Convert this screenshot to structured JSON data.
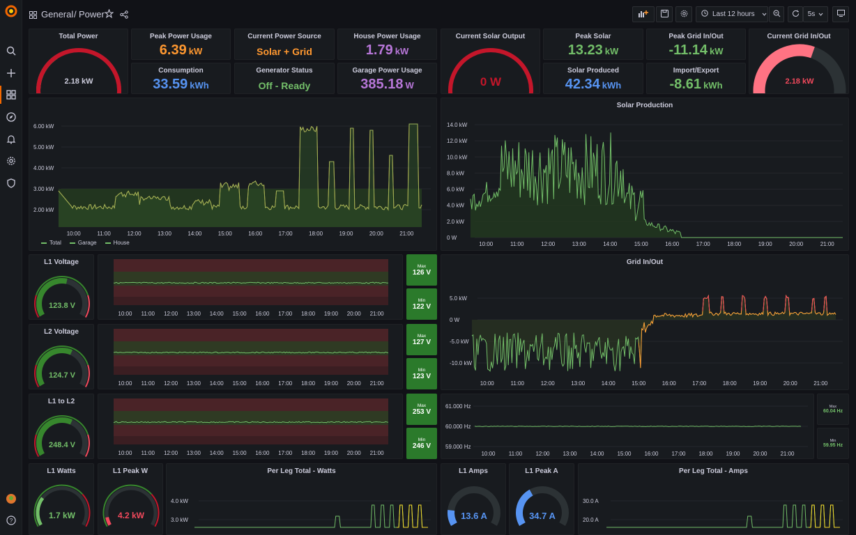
{
  "breadcrumb": {
    "folder": "General",
    "separator": "/",
    "dashboard": "Power"
  },
  "toolbar": {
    "time_range": "Last 12 hours",
    "refresh_interval": "5s"
  },
  "colors": {
    "green": "#73bf69",
    "orange": "#ff9830",
    "yellow": "#fade2a",
    "purple": "#b877d9",
    "blue": "#5794f2",
    "red": "#f2495c",
    "dark_red": "#c4162a"
  },
  "time_ticks": [
    "10:00",
    "11:00",
    "12:00",
    "13:00",
    "14:00",
    "15:00",
    "16:00",
    "17:00",
    "18:00",
    "19:00",
    "20:00",
    "21:00"
  ],
  "stats": {
    "total_power": {
      "title": "Total Power",
      "value": "2.18 kW",
      "fraction": 0.36
    },
    "peak_power_usage": {
      "title": "Peak Power Usage",
      "value": "6.39",
      "unit": "kW"
    },
    "current_power_source": {
      "title": "Current Power Source",
      "value": "Solar + Grid"
    },
    "house_power_usage": {
      "title": "House Power Usage",
      "value": "1.79",
      "unit": "kW"
    },
    "consumption": {
      "title": "Consumption",
      "value": "33.59",
      "unit": "kWh"
    },
    "generator_status": {
      "title": "Generator Status",
      "value": "Off - Ready"
    },
    "garage_power_usage": {
      "title": "Garage Power Usage",
      "value": "385.18",
      "unit": "W"
    },
    "current_solar_output": {
      "title": "Current Solar Output",
      "value": "0 W",
      "fraction": 0
    },
    "peak_solar": {
      "title": "Peak Solar",
      "value": "13.23",
      "unit": "kW"
    },
    "peak_grid": {
      "title": "Peak Grid In/Out",
      "value": "-11.14",
      "unit": "kW"
    },
    "current_grid": {
      "title": "Current Grid In/Out",
      "value": "2.18 kW",
      "fraction": 0.58
    },
    "solar_produced": {
      "title": "Solar Produced",
      "value": "42.34",
      "unit": "kWh"
    },
    "import_export": {
      "title": "Import/Export",
      "value": "-8.61",
      "unit": "kWh"
    }
  },
  "power_chart": {
    "y_ticks": [
      "6.00 kW",
      "5.00 kW",
      "4.00 kW",
      "3.00 kW",
      "2.00 kW"
    ],
    "legend": [
      "Total",
      "Garage",
      "House"
    ]
  },
  "solar_chart": {
    "title": "Solar Production",
    "y_ticks": [
      "14.0 kW",
      "12.0 kW",
      "10.0 kW",
      "8.0 kW",
      "6.0 kW",
      "4.0 kW",
      "2.0 kW",
      "0 W"
    ]
  },
  "voltage_rows": [
    {
      "title": "L1 Voltage",
      "value": "123.8 V",
      "fraction": 0.55,
      "max_label": "Max",
      "max": "126 V",
      "min_label": "Min",
      "min": "122 V"
    },
    {
      "title": "L2 Voltage",
      "value": "124.7 V",
      "fraction": 0.6,
      "max_label": "Max",
      "max": "127 V",
      "min_label": "Min",
      "min": "123 V"
    },
    {
      "title": "L1 to L2",
      "value": "248.4 V",
      "fraction": 0.6,
      "max_label": "Max",
      "max": "253 V",
      "min_label": "Min",
      "min": "246 V"
    }
  ],
  "grid_chart": {
    "title": "Grid In/Out",
    "y_ticks": [
      "5.0 kW",
      "0 W",
      "-5.0 kW",
      "-10.0 kW"
    ]
  },
  "freq_chart": {
    "y_ticks": [
      "61.000 Hz",
      "60.000 Hz",
      "59.000 Hz"
    ],
    "max_label": "Max",
    "max": "60.04 Hz",
    "min_label": "Min",
    "min": "59.95 Hz"
  },
  "bottom": {
    "l1_watts": {
      "title": "L1 Watts",
      "value": "1.7 kW",
      "fraction": 0.28
    },
    "l1_peak_w": {
      "title": "L1 Peak W",
      "value": "4.2 kW",
      "fraction": 0.08
    },
    "per_leg_watts": {
      "title": "Per Leg Total - Watts",
      "y_ticks": [
        "4.0 kW",
        "3.0 kW"
      ]
    },
    "l1_amps": {
      "title": "L1 Amps",
      "value": "13.6 A",
      "fraction": 0.15
    },
    "l1_peak_a": {
      "title": "L1 Peak A",
      "value": "34.7 A",
      "fraction": 0.38
    },
    "per_leg_amps": {
      "title": "Per Leg Total - Amps",
      "y_ticks": [
        "30.0 A",
        "20.0 A"
      ]
    }
  }
}
